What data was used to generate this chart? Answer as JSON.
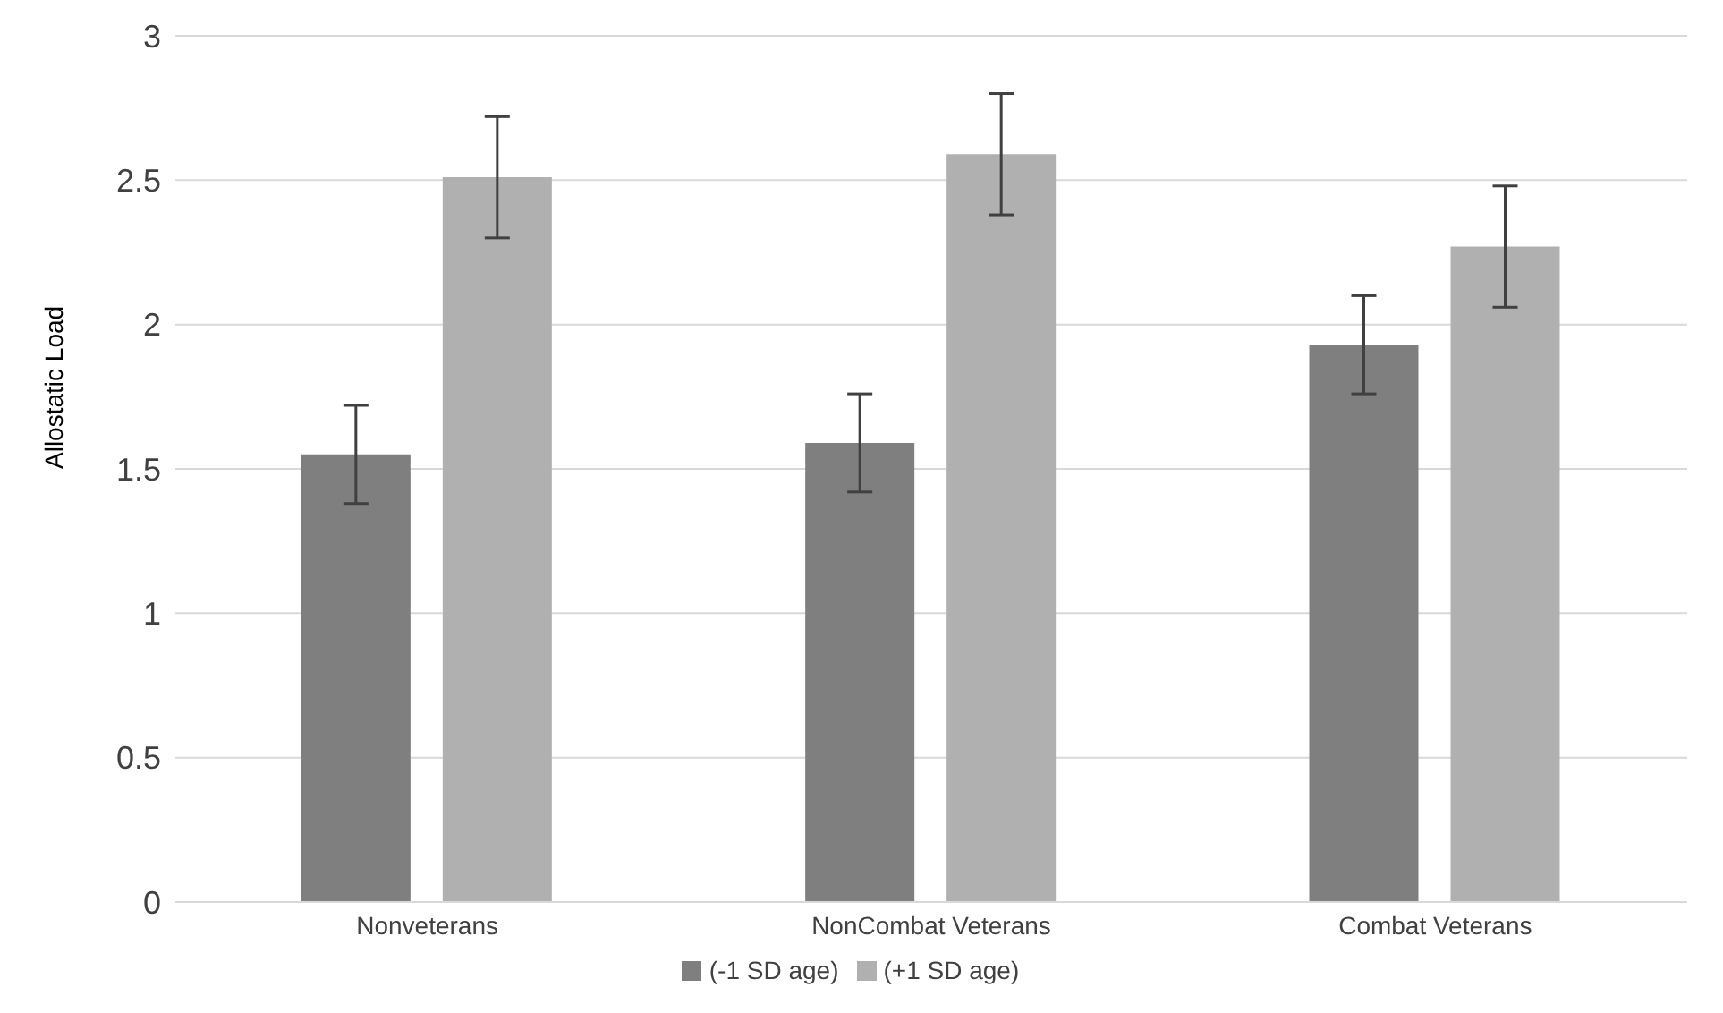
{
  "chart_data": {
    "type": "bar",
    "ylabel": "Allostatic Load",
    "categories": [
      "Nonveterans",
      "NonCombat Veterans",
      "Combat Veterans"
    ],
    "series": [
      {
        "name": "(-1 SD age)",
        "color": "#7f7f7f",
        "values": [
          1.55,
          1.59,
          1.93
        ],
        "errors": [
          0.17,
          0.17,
          0.17
        ]
      },
      {
        "name": "(+1 SD age)",
        "color": "#b0b0b0",
        "values": [
          2.51,
          2.59,
          2.27
        ],
        "errors": [
          0.21,
          0.21,
          0.21
        ]
      }
    ],
    "ylim": [
      0,
      3
    ],
    "yticks": [
      0,
      0.5,
      1,
      1.5,
      2,
      2.5,
      3
    ],
    "grid": "y",
    "legend": "bottom"
  }
}
